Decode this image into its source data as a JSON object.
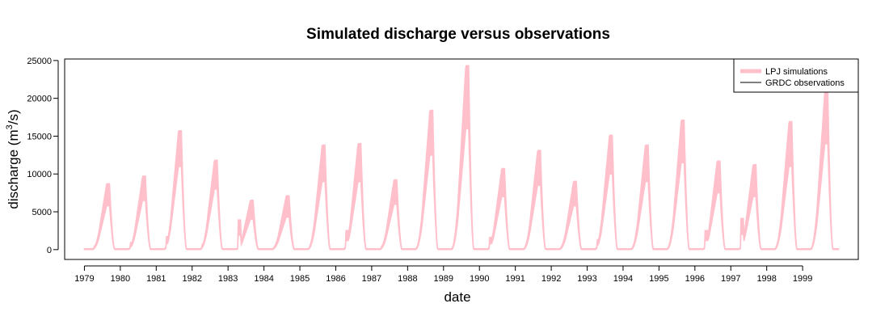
{
  "chart_data": {
    "type": "area",
    "title": "Simulated discharge versus observations",
    "xlabel": "date",
    "ylabel_main": "discharge (m",
    "ylabel_sup": "3",
    "ylabel_tail": "/s)",
    "ylim": [
      -1300,
      25200
    ],
    "xlim": [
      1978.45,
      2000.55
    ],
    "yticks": [
      0,
      5000,
      10000,
      15000,
      20000,
      25000
    ],
    "xticks": [
      "1979",
      "1980",
      "1981",
      "1982",
      "1983",
      "1984",
      "1985",
      "1986",
      "1987",
      "1988",
      "1989",
      "1990",
      "1991",
      "1992",
      "1993",
      "1994",
      "1995",
      "1996",
      "1997",
      "1998",
      "1999"
    ],
    "grid": false,
    "legend": {
      "placement": "top-right",
      "entries": [
        {
          "label": "LPJ simulations",
          "color": "#ffc0cb",
          "style": "thick-line"
        },
        {
          "label": "GRDC observations",
          "color": "#000000",
          "style": "thin-line"
        }
      ]
    },
    "series": [
      {
        "name": "LPJ simulations",
        "color": "#ffc0cb",
        "annual": [
          {
            "year": 1979,
            "lo": 5800,
            "hi": 8600,
            "pre": 400
          },
          {
            "year": 1980,
            "lo": 6500,
            "hi": 9600,
            "pre": 800
          },
          {
            "year": 1981,
            "lo": 11000,
            "hi": 15600,
            "pre": 1600
          },
          {
            "year": 1982,
            "lo": 8000,
            "hi": 11700,
            "pre": 600
          },
          {
            "year": 1983,
            "lo": 4000,
            "hi": 6400,
            "pre": 3800
          },
          {
            "year": 1984,
            "lo": 4300,
            "hi": 7000,
            "pre": 200
          },
          {
            "year": 1985,
            "lo": 9000,
            "hi": 13700,
            "pre": 200
          },
          {
            "year": 1986,
            "lo": 9000,
            "hi": 13900,
            "pre": 2400
          },
          {
            "year": 1987,
            "lo": 6000,
            "hi": 9100,
            "pre": 400
          },
          {
            "year": 1988,
            "lo": 12500,
            "hi": 18300,
            "pre": 300
          },
          {
            "year": 1989,
            "lo": 16000,
            "hi": 24200,
            "pre": 300
          },
          {
            "year": 1990,
            "lo": 7000,
            "hi": 10600,
            "pre": 1500
          },
          {
            "year": 1991,
            "lo": 8500,
            "hi": 13000,
            "pre": 300
          },
          {
            "year": 1992,
            "lo": 5800,
            "hi": 8900,
            "pre": 300
          },
          {
            "year": 1993,
            "lo": 10000,
            "hi": 15000,
            "pre": 1200
          },
          {
            "year": 1994,
            "lo": 9000,
            "hi": 13700,
            "pre": 300
          },
          {
            "year": 1995,
            "lo": 11500,
            "hi": 17000,
            "pre": 300
          },
          {
            "year": 1996,
            "lo": 7500,
            "hi": 11600,
            "pre": 2400
          },
          {
            "year": 1997,
            "lo": 7000,
            "hi": 11100,
            "pre": 4000
          },
          {
            "year": 1998,
            "lo": 11000,
            "hi": 16800,
            "pre": 300
          },
          {
            "year": 1999,
            "lo": 14000,
            "hi": 21000,
            "pre": 300
          }
        ]
      },
      {
        "name": "GRDC observations",
        "color": "#000000",
        "annual": []
      }
    ]
  }
}
